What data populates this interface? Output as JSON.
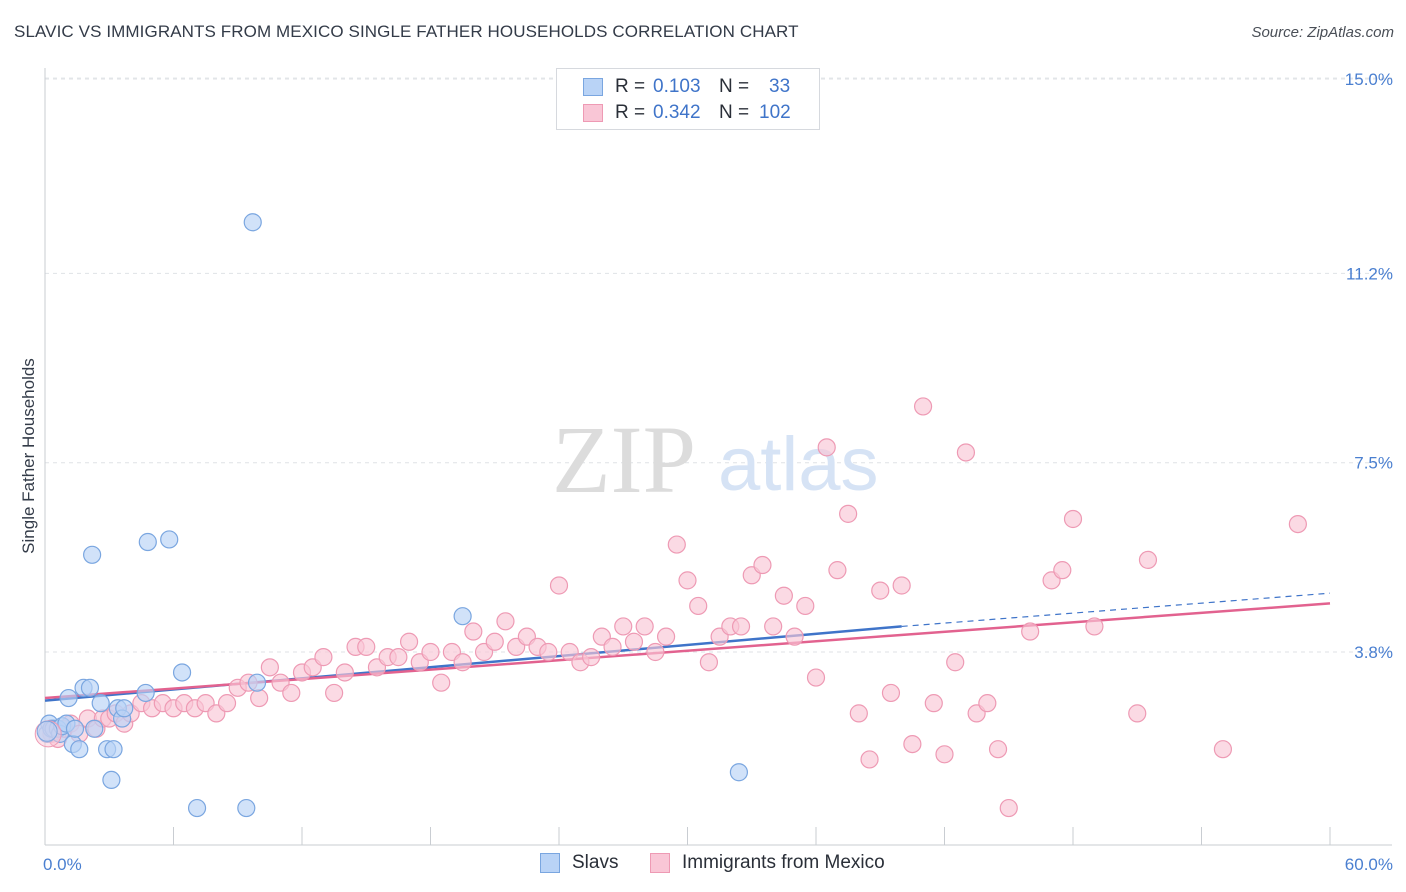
{
  "title": "SLAVIC VS IMMIGRANTS FROM MEXICO SINGLE FATHER HOUSEHOLDS CORRELATION CHART",
  "source": "Source: ZipAtlas.com",
  "watermark": {
    "zip": "ZIP",
    "atlas": "atlas"
  },
  "legend": {
    "rows": [
      {
        "r_label": "R =",
        "r_value": "0.103",
        "n_label": "N =",
        "n_value": "33",
        "fill": "#b9d3f6",
        "stroke": "#7aa6e0"
      },
      {
        "r_label": "R =",
        "r_value": "0.342",
        "n_label": "N =",
        "n_value": "102",
        "fill": "#f9c6d6",
        "stroke": "#ee9ab4"
      }
    ]
  },
  "bottom_legend": [
    {
      "label": "Slavs",
      "fill": "#b9d3f6",
      "stroke": "#7aa6e0"
    },
    {
      "label": "Immigrants from Mexico",
      "fill": "#f9c6d6",
      "stroke": "#ee9ab4"
    }
  ],
  "chart_data": {
    "type": "scatter",
    "title": "SLAVIC VS IMMIGRANTS FROM MEXICO SINGLE FATHER HOUSEHOLDS CORRELATION CHART",
    "xlabel": "",
    "ylabel": "Single Father Households",
    "xlim": [
      0,
      60
    ],
    "ylim": [
      0,
      15.5
    ],
    "x_tick_labels": [
      "0.0%",
      "60.0%"
    ],
    "y_ticks": [
      3.8,
      7.5,
      11.2,
      15.0
    ],
    "y_tick_labels": [
      "3.8%",
      "7.5%",
      "11.2%",
      "15.0%"
    ],
    "grid": true,
    "colors": {
      "slavs": "#3f74c9",
      "mexico": "#e2628f",
      "slavs_fill": "#b9d3f6",
      "mexico_fill": "#f9c6d6"
    },
    "series": [
      {
        "name": "Slavs",
        "points": [
          [
            0.1,
            2.2
          ],
          [
            0.2,
            2.4
          ],
          [
            0.3,
            2.3
          ],
          [
            0.4,
            2.3
          ],
          [
            0.6,
            2.3
          ],
          [
            0.7,
            2.2
          ],
          [
            0.8,
            2.35
          ],
          [
            1.0,
            2.4
          ],
          [
            1.1,
            2.9
          ],
          [
            1.3,
            2.0
          ],
          [
            1.4,
            2.3
          ],
          [
            1.6,
            1.9
          ],
          [
            1.8,
            3.1
          ],
          [
            2.1,
            3.1
          ],
          [
            2.2,
            5.7
          ],
          [
            2.3,
            2.3
          ],
          [
            2.6,
            2.8
          ],
          [
            2.9,
            1.9
          ],
          [
            3.1,
            1.3
          ],
          [
            3.2,
            1.9
          ],
          [
            3.4,
            2.7
          ],
          [
            3.6,
            2.5
          ],
          [
            3.7,
            2.7
          ],
          [
            4.7,
            3.0
          ],
          [
            4.8,
            5.95
          ],
          [
            5.8,
            6.0
          ],
          [
            6.4,
            3.4
          ],
          [
            7.1,
            0.75
          ],
          [
            9.4,
            0.75
          ],
          [
            9.7,
            12.2
          ],
          [
            9.9,
            3.2
          ],
          [
            19.5,
            4.5
          ],
          [
            32.4,
            1.45
          ]
        ],
        "trend": {
          "x0": 0,
          "y0": 2.85,
          "x1": 40,
          "y1": 4.3,
          "dashed_to_x": 60,
          "dashed_to_y": 4.95
        }
      },
      {
        "name": "Immigrants from Mexico",
        "points": [
          [
            0.3,
            2.2
          ],
          [
            0.6,
            2.1
          ],
          [
            0.9,
            2.3
          ],
          [
            1.2,
            2.4
          ],
          [
            1.6,
            2.2
          ],
          [
            2.0,
            2.5
          ],
          [
            2.4,
            2.3
          ],
          [
            2.7,
            2.5
          ],
          [
            3.0,
            2.5
          ],
          [
            3.3,
            2.6
          ],
          [
            3.7,
            2.4
          ],
          [
            4.0,
            2.6
          ],
          [
            4.5,
            2.8
          ],
          [
            5.0,
            2.7
          ],
          [
            5.5,
            2.8
          ],
          [
            6.0,
            2.7
          ],
          [
            6.5,
            2.8
          ],
          [
            7.0,
            2.7
          ],
          [
            7.5,
            2.8
          ],
          [
            8.0,
            2.6
          ],
          [
            8.5,
            2.8
          ],
          [
            9.0,
            3.1
          ],
          [
            9.5,
            3.2
          ],
          [
            10.0,
            2.9
          ],
          [
            10.5,
            3.5
          ],
          [
            11.0,
            3.2
          ],
          [
            11.5,
            3.0
          ],
          [
            12.0,
            3.4
          ],
          [
            12.5,
            3.5
          ],
          [
            13.0,
            3.7
          ],
          [
            13.5,
            3.0
          ],
          [
            14.0,
            3.4
          ],
          [
            14.5,
            3.9
          ],
          [
            15.0,
            3.9
          ],
          [
            15.5,
            3.5
          ],
          [
            16.0,
            3.7
          ],
          [
            16.5,
            3.7
          ],
          [
            17.0,
            4.0
          ],
          [
            17.5,
            3.6
          ],
          [
            18.0,
            3.8
          ],
          [
            18.5,
            3.2
          ],
          [
            19.0,
            3.8
          ],
          [
            19.5,
            3.6
          ],
          [
            20.0,
            4.2
          ],
          [
            20.5,
            3.8
          ],
          [
            21.0,
            4.0
          ],
          [
            21.5,
            4.4
          ],
          [
            22.0,
            3.9
          ],
          [
            22.5,
            4.1
          ],
          [
            23.0,
            3.9
          ],
          [
            23.5,
            3.8
          ],
          [
            24.0,
            5.1
          ],
          [
            24.5,
            3.8
          ],
          [
            25.0,
            3.6
          ],
          [
            25.5,
            3.7
          ],
          [
            26.0,
            4.1
          ],
          [
            26.5,
            3.9
          ],
          [
            27.0,
            4.3
          ],
          [
            27.5,
            4.0
          ],
          [
            28.0,
            4.3
          ],
          [
            28.5,
            3.8
          ],
          [
            29.0,
            4.1
          ],
          [
            29.5,
            5.9
          ],
          [
            30.0,
            5.2
          ],
          [
            30.5,
            4.7
          ],
          [
            31.0,
            3.6
          ],
          [
            31.5,
            4.1
          ],
          [
            32.0,
            4.3
          ],
          [
            32.5,
            4.3
          ],
          [
            33.0,
            5.3
          ],
          [
            33.5,
            5.5
          ],
          [
            34.0,
            4.3
          ],
          [
            34.5,
            4.9
          ],
          [
            35.0,
            4.1
          ],
          [
            35.5,
            4.7
          ],
          [
            36.0,
            3.3
          ],
          [
            36.5,
            7.8
          ],
          [
            37.0,
            5.4
          ],
          [
            37.5,
            6.5
          ],
          [
            38.0,
            2.6
          ],
          [
            38.5,
            1.7
          ],
          [
            39.0,
            5.0
          ],
          [
            39.5,
            3.0
          ],
          [
            40.0,
            5.1
          ],
          [
            40.5,
            2.0
          ],
          [
            41.0,
            8.6
          ],
          [
            41.5,
            2.8
          ],
          [
            42.0,
            1.8
          ],
          [
            42.5,
            3.6
          ],
          [
            43.0,
            7.7
          ],
          [
            43.5,
            2.6
          ],
          [
            44.0,
            2.8
          ],
          [
            44.5,
            1.9
          ],
          [
            45.0,
            0.75
          ],
          [
            46.0,
            4.2
          ],
          [
            47.0,
            5.2
          ],
          [
            47.5,
            5.4
          ],
          [
            48.0,
            6.4
          ],
          [
            49.0,
            4.3
          ],
          [
            51.0,
            2.6
          ],
          [
            51.5,
            5.6
          ],
          [
            55.0,
            1.9
          ],
          [
            58.5,
            6.3
          ]
        ],
        "trend": {
          "x0": 0,
          "y0": 2.9,
          "x1": 60,
          "y1": 4.75
        }
      }
    ]
  }
}
